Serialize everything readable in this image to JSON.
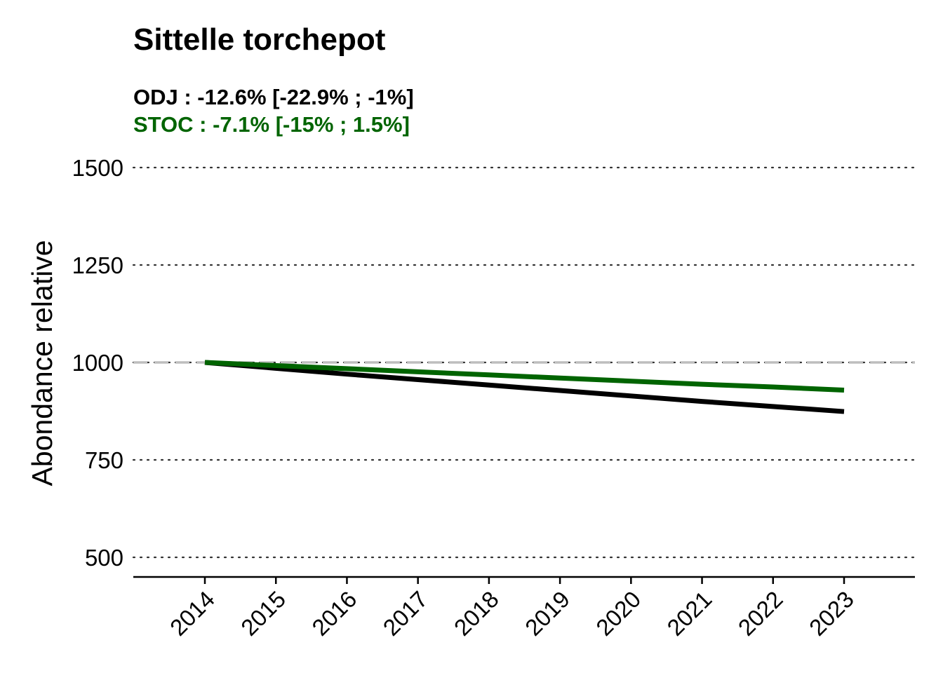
{
  "chart_data": {
    "type": "line",
    "title": "Sittelle torchepot",
    "subtitles": [
      {
        "text": "ODJ : -12.6% [-22.9% ; -1%]",
        "color": "#000000"
      },
      {
        "text": "STOC : -7.1% [-15% ; 1.5%]",
        "color": "#006400"
      }
    ],
    "xlabel": "",
    "ylabel": "Abondance relative",
    "x": [
      2014,
      2015,
      2016,
      2017,
      2018,
      2019,
      2020,
      2021,
      2022,
      2023
    ],
    "xlim": [
      2013,
      2024
    ],
    "ylim": [
      450,
      1500
    ],
    "yticks": [
      500,
      750,
      1000,
      1250,
      1500
    ],
    "grid": "horizontal dotted",
    "reference_line": {
      "y": 1000,
      "style": "dashed",
      "color": "#bebebe"
    },
    "series": [
      {
        "values": [
          1000,
          985,
          970,
          956,
          942,
          928,
          914,
          900,
          887,
          874
        ],
        "color": "#000000"
      },
      {
        "values": [
          1000,
          992,
          984,
          976,
          968,
          960,
          952,
          944,
          937,
          929
        ],
        "color": "#006400"
      }
    ]
  }
}
